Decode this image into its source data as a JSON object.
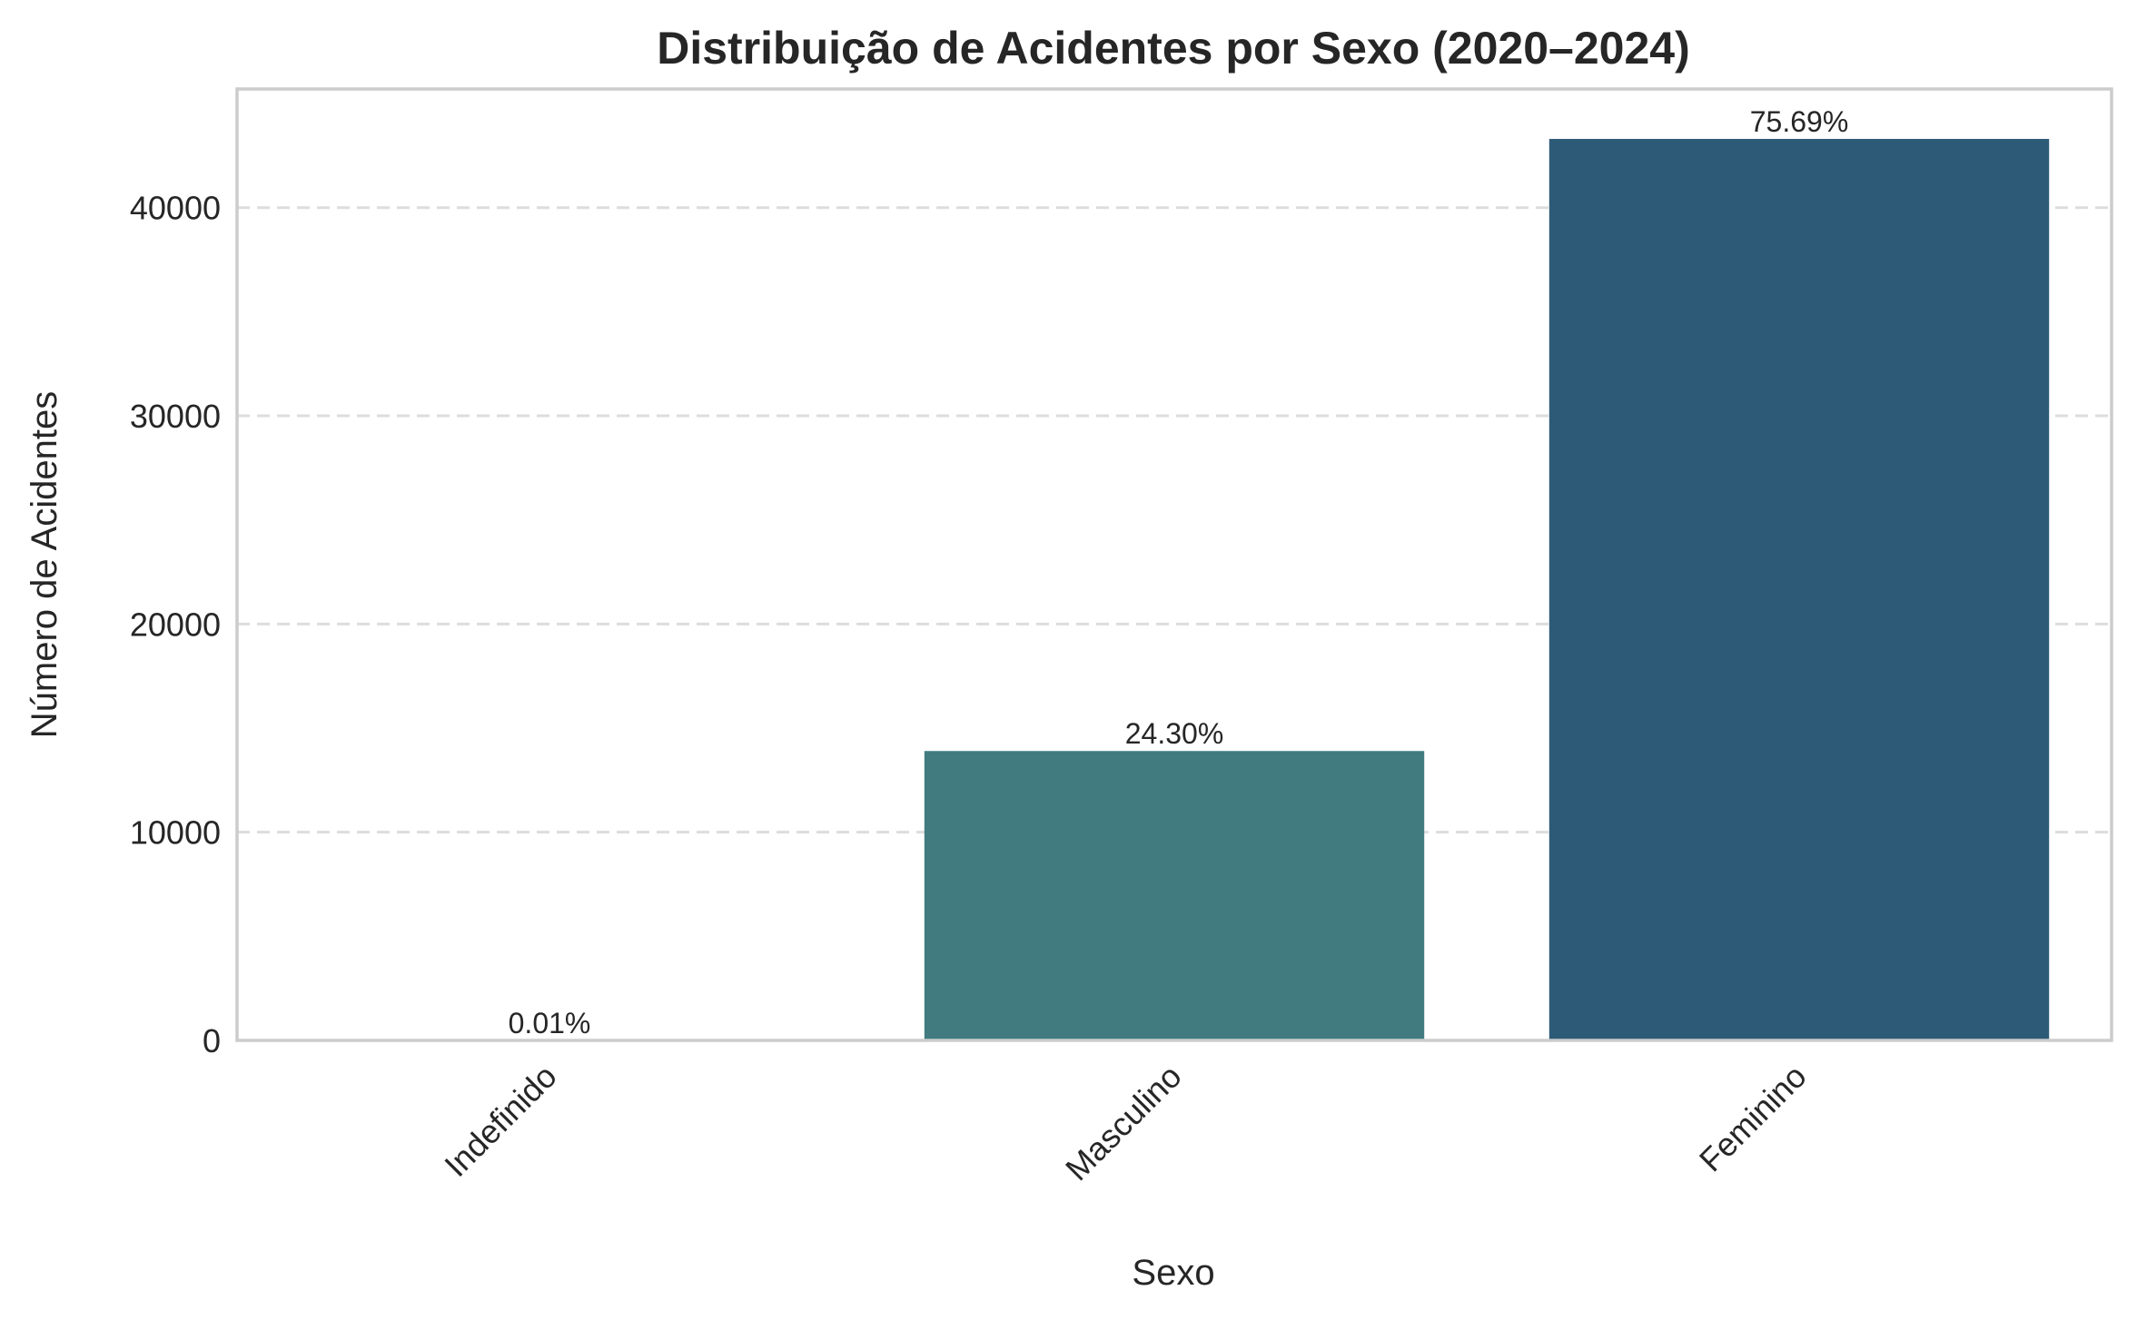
{
  "chart_data": {
    "type": "bar",
    "title": "Distribuição de Acidentes por Sexo (2020–2024)",
    "xlabel": "Sexo",
    "ylabel": "Número de Acidentes",
    "categories": [
      "Indefinido",
      "Masculino",
      "Feminino"
    ],
    "values": [
      6,
      13900,
      43300
    ],
    "data_labels": [
      "0.01%",
      "24.30%",
      "75.69%"
    ],
    "colors": [
      "#4a8f8c",
      "#417b80",
      "#2d5a77"
    ],
    "ylim": [
      0,
      45700
    ],
    "yticks": [
      0,
      10000,
      20000,
      30000,
      40000
    ],
    "grid": "horizontal dashed",
    "legend": "none"
  }
}
